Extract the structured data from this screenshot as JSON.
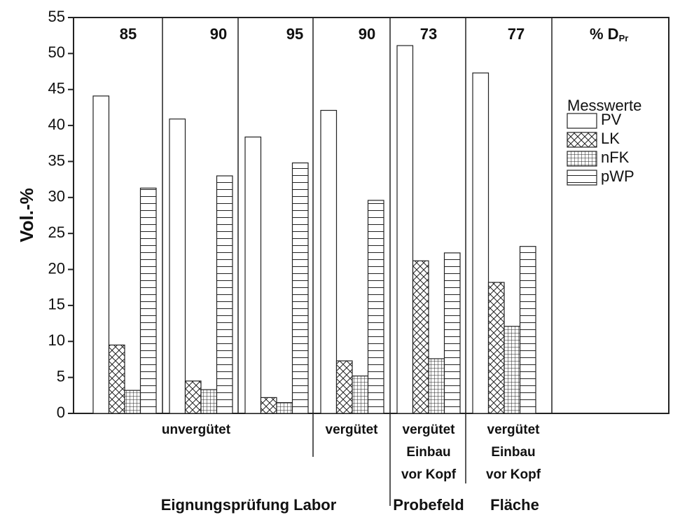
{
  "chart_data": {
    "type": "bar",
    "ylabel": "Vol.-%",
    "categories": [
      "85",
      "90",
      "95",
      "90",
      "73",
      "77"
    ],
    "unit_label": {
      "text": "% D",
      "sub": "Pr"
    },
    "group_labels": [
      [
        "unvergütet"
      ],
      [
        "vergütet"
      ],
      [
        "vergütet",
        "Einbau",
        "vor Kopf"
      ],
      [
        "vergütet",
        "Einbau",
        "vor Kopf"
      ]
    ],
    "section_labels": [
      "Eignungsprüfung Labor",
      "Probefeld",
      "Fläche"
    ],
    "legend_title": "Messwerte",
    "series": [
      {
        "name": "PV",
        "pattern": "none",
        "color": "#222222",
        "values": [
          44.1,
          40.9,
          38.4,
          42.1,
          51.1,
          47.3
        ]
      },
      {
        "name": "LK",
        "pattern": "cross",
        "color": "#222222",
        "values": [
          9.5,
          4.5,
          2.2,
          7.3,
          21.2,
          18.2
        ]
      },
      {
        "name": "nFK",
        "pattern": "grid",
        "color": "#222222",
        "values": [
          3.2,
          3.3,
          1.5,
          5.2,
          7.6,
          12.1
        ]
      },
      {
        "name": "pWP",
        "pattern": "hlines",
        "color": "#222222",
        "values": [
          31.3,
          33.0,
          34.8,
          29.6,
          22.3,
          23.2
        ]
      }
    ],
    "ylim": [
      0,
      55
    ],
    "yticks": [
      0,
      5,
      10,
      15,
      20,
      25,
      30,
      35,
      40,
      45,
      50,
      55
    ]
  }
}
